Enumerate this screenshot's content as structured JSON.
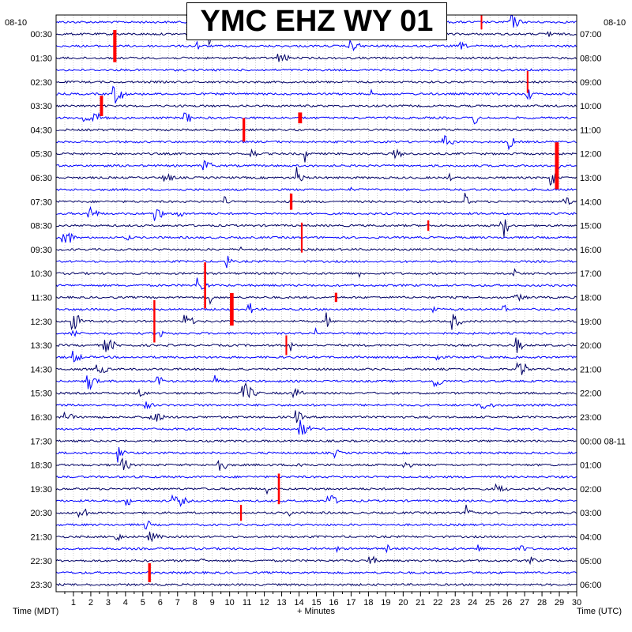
{
  "chart_data": {
    "type": "line",
    "title": "YMC EHZ WY 01",
    "xlabel": "+ Minutes",
    "left_axis_label": "Time (MDT)",
    "right_axis_label": "Time (UTC)",
    "left_date": "08-10",
    "right_date": "08-10",
    "right_date_change": "00:00 08-11",
    "xlim": [
      0,
      30
    ],
    "x_ticks": [
      1,
      2,
      3,
      4,
      5,
      6,
      7,
      8,
      9,
      10,
      11,
      12,
      13,
      14,
      15,
      16,
      17,
      18,
      19,
      20,
      21,
      22,
      23,
      24,
      25,
      26,
      27,
      28,
      29,
      30
    ],
    "left_time_labels": [
      "00:30",
      "01:30",
      "02:30",
      "03:30",
      "04:30",
      "05:30",
      "06:30",
      "07:30",
      "08:30",
      "09:30",
      "10:30",
      "11:30",
      "12:30",
      "13:30",
      "14:30",
      "15:30",
      "16:30",
      "17:30",
      "18:30",
      "19:30",
      "20:30",
      "21:30",
      "22:30",
      "23:30"
    ],
    "right_time_labels": [
      "07:00",
      "08:00",
      "09:00",
      "10:00",
      "11:00",
      "12:00",
      "13:00",
      "14:00",
      "15:00",
      "16:00",
      "17:00",
      "18:00",
      "19:00",
      "20:00",
      "21:00",
      "22:00",
      "23:00",
      "00:00 08-11",
      "01:00",
      "02:00",
      "03:00",
      "04:00",
      "05:00",
      "06:00"
    ],
    "traces_count": 48,
    "trace_colors": [
      "#0000ff",
      "#000066"
    ],
    "clip_color": "#ff0000",
    "grid": true
  }
}
